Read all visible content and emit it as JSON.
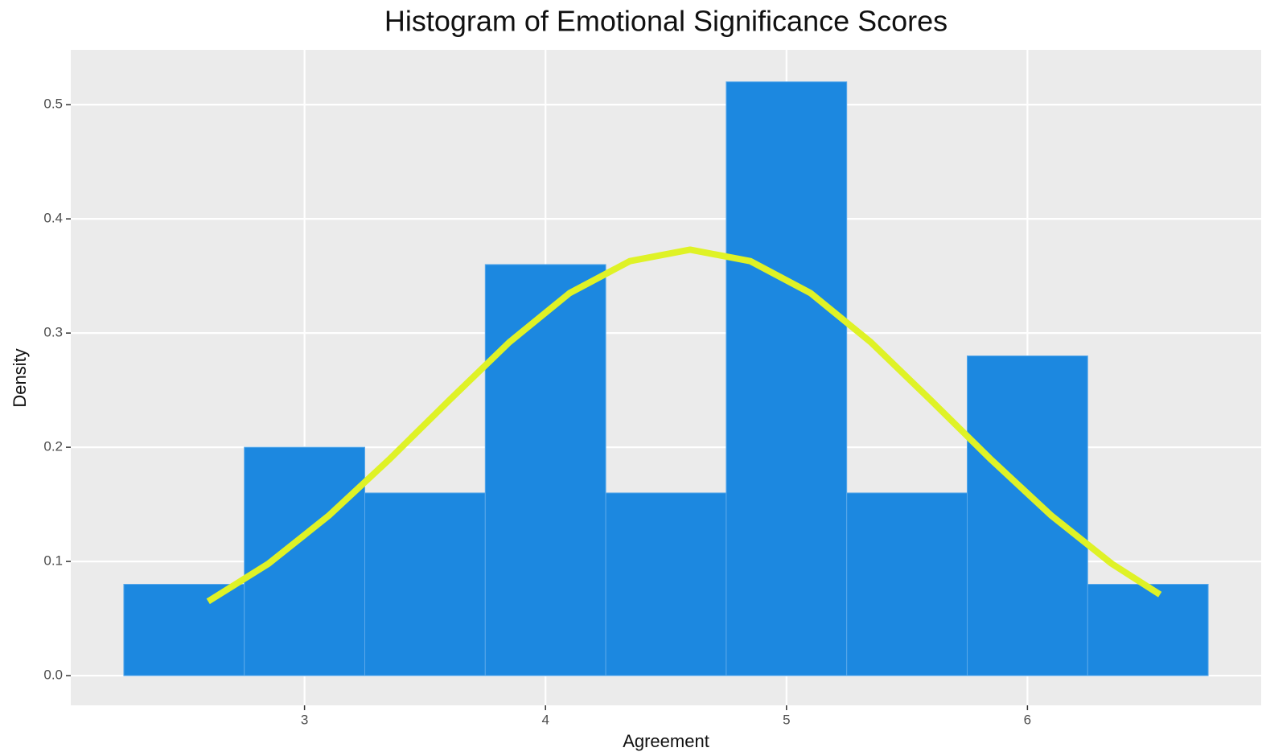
{
  "chart_data": {
    "type": "histogram",
    "title": "Histogram of Emotional Significance Scores",
    "xlabel": "Agreement",
    "ylabel": "Density",
    "bins": [
      2.25,
      2.75,
      3.25,
      3.75,
      4.25,
      4.75,
      5.25,
      5.75,
      6.25,
      6.75
    ],
    "values": [
      0.08,
      0.2,
      0.16,
      0.36,
      0.16,
      0.52,
      0.16,
      0.28,
      0.08
    ],
    "color": "#1c88e0",
    "density_curve": {
      "x": [
        2.6,
        2.85,
        3.1,
        3.35,
        3.6,
        3.85,
        4.1,
        4.35,
        4.6,
        4.85,
        5.1,
        5.35,
        5.6,
        5.85,
        6.1,
        6.35,
        6.55
      ],
      "values": [
        0.065,
        0.098,
        0.14,
        0.189,
        0.241,
        0.292,
        0.335,
        0.363,
        0.373,
        0.363,
        0.335,
        0.292,
        0.241,
        0.189,
        0.14,
        0.098,
        0.071
      ],
      "color": "#dff226"
    },
    "xlim": [
      2.03,
      6.97
    ],
    "xticks": [
      3,
      4,
      5,
      6
    ],
    "ylim": [
      -0.026,
      0.548
    ],
    "yticks": [
      {
        "value": 0,
        "label": "0.0"
      },
      0.1,
      0.2,
      0.3,
      0.4,
      0.5
    ],
    "grid": true
  }
}
